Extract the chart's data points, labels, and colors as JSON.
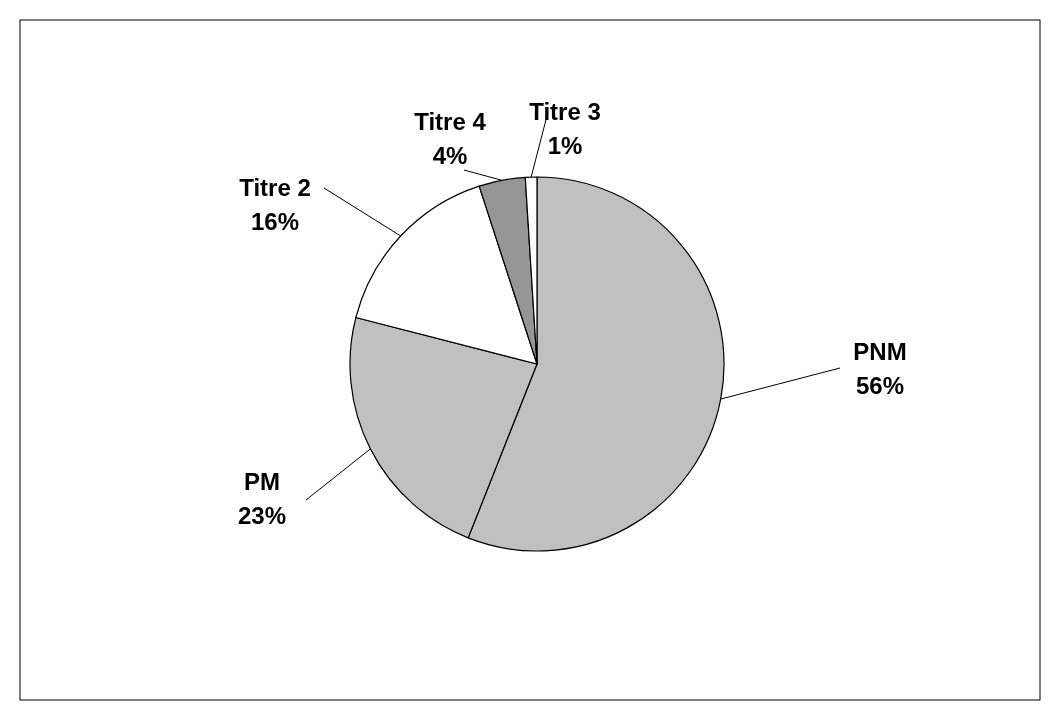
{
  "chart_data": {
    "type": "pie",
    "categories": [
      "PNM",
      "PM",
      "Titre 2",
      "Titre 4",
      "Titre 3"
    ],
    "values": [
      56,
      23,
      16,
      4,
      1
    ],
    "colors": [
      "#c0c0c0",
      "#c0c0c0",
      "#ffffff",
      "#969696",
      "#ffffff"
    ],
    "value_labels": [
      "56%",
      "23%",
      "16%",
      "4%",
      "1%"
    ]
  }
}
